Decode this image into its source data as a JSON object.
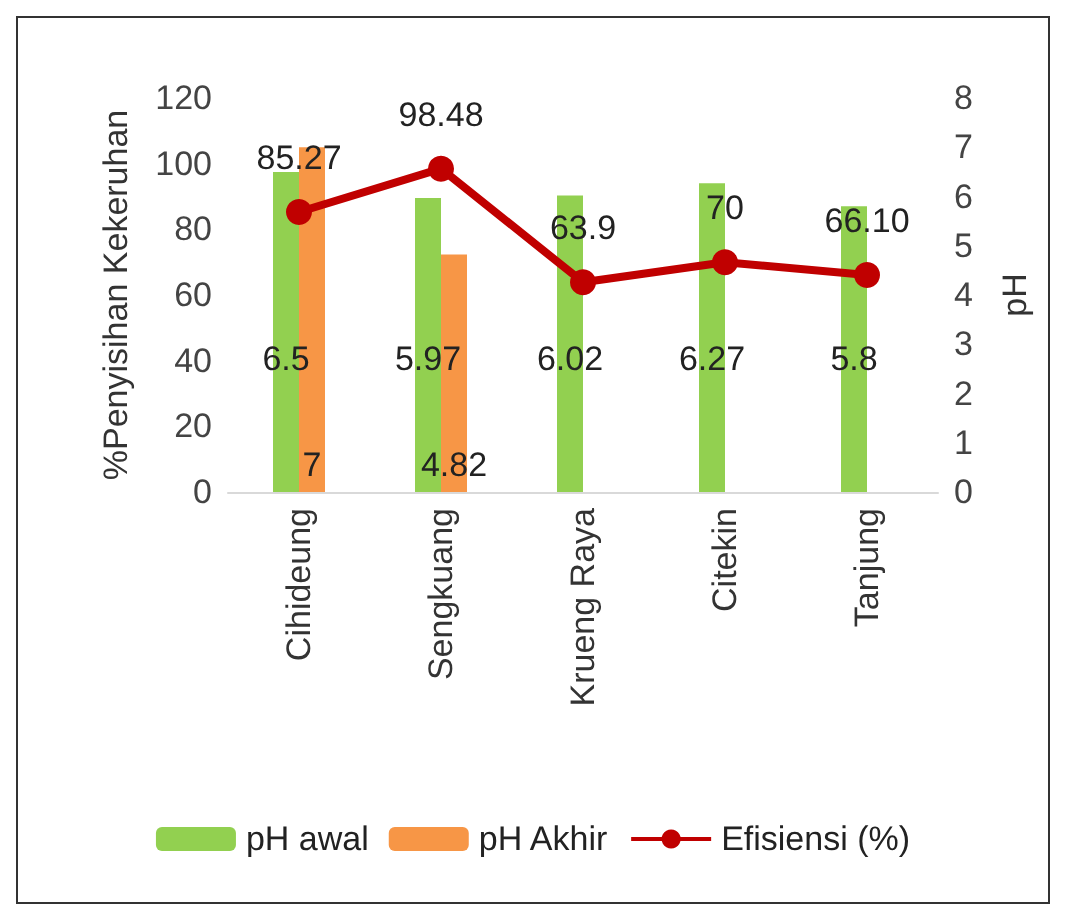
{
  "chart_data": {
    "type": "bar",
    "ylabel": "%Penyisihan Kekeruhan",
    "y2label": "pH",
    "categories": [
      "Cihideung",
      "Sengkuang",
      "Krueng Raya",
      "Citekin",
      "Tanjung"
    ],
    "series": [
      {
        "name": "pH awal",
        "color": "#92d050",
        "axis": "y2",
        "values": [
          6.5,
          5.97,
          6.02,
          6.27,
          5.8
        ],
        "value_labels": [
          "6.5",
          "5.97",
          "6.02",
          "6.27",
          "5.8"
        ]
      },
      {
        "name": "pH Akhir",
        "color": "#f79646",
        "axis": "y2",
        "values": [
          7,
          4.82,
          null,
          null,
          null
        ],
        "value_labels": [
          "7",
          "4.82",
          null,
          null,
          null
        ]
      },
      {
        "name": "Efisiensi (%)",
        "type": "line",
        "color": "#c00000",
        "values": [
          85.27,
          98.48,
          63.9,
          70,
          66.1
        ],
        "value_labels": [
          "85.27",
          "98.48",
          "63.9",
          "70",
          "66.10"
        ]
      }
    ],
    "ylim": [
      0,
      120
    ],
    "yticks": [
      0,
      20,
      40,
      60,
      80,
      100,
      120
    ],
    "y2lim": [
      0,
      8
    ],
    "y2ticks": [
      0,
      1,
      2,
      3,
      4,
      5,
      6,
      7,
      8
    ],
    "legend": "bottom",
    "marker": "circle",
    "grid": false
  }
}
